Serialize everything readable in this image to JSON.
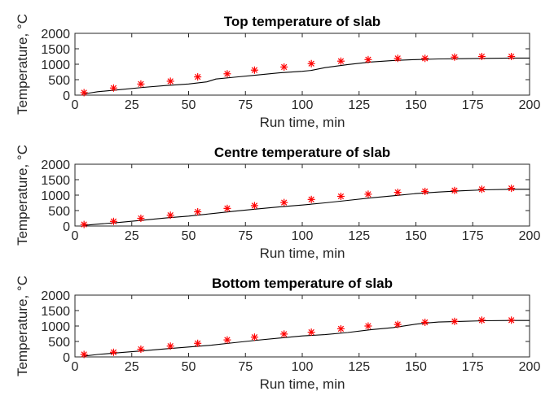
{
  "chart_data": [
    {
      "type": "line",
      "title": "Top temperature of slab",
      "xlabel": "Run time, min",
      "ylabel": "Temperature, °C",
      "xlim": [
        0,
        200
      ],
      "ylim": [
        0,
        2000
      ],
      "xticks": [
        0,
        25,
        50,
        75,
        100,
        125,
        150,
        175,
        200
      ],
      "yticks": [
        0,
        500,
        1000,
        1500,
        2000
      ],
      "grid": false,
      "series": [
        {
          "style": "line",
          "color": "#000000",
          "x": [
            4,
            10,
            20,
            30,
            40,
            50,
            58,
            62,
            70,
            80,
            90,
            100,
            104,
            110,
            120,
            130,
            140,
            150,
            160,
            170,
            180,
            192,
            200
          ],
          "y": [
            40,
            110,
            180,
            250,
            310,
            360,
            430,
            520,
            580,
            650,
            720,
            770,
            800,
            890,
            990,
            1070,
            1120,
            1150,
            1170,
            1180,
            1190,
            1200,
            1200
          ]
        },
        {
          "style": "markers",
          "marker": "asterisk",
          "color": "#ff0000",
          "x": [
            4,
            17,
            29,
            42,
            54,
            67,
            79,
            92,
            104,
            117,
            129,
            142,
            154,
            167,
            179,
            192
          ],
          "y": [
            80,
            230,
            360,
            450,
            590,
            690,
            810,
            910,
            1020,
            1100,
            1150,
            1190,
            1190,
            1230,
            1250,
            1250
          ]
        }
      ]
    },
    {
      "type": "line",
      "title": "Centre temperature of slab",
      "xlabel": "Run time, min",
      "ylabel": "Temperature, °C",
      "xlim": [
        0,
        200
      ],
      "ylim": [
        0,
        2000
      ],
      "xticks": [
        0,
        25,
        50,
        75,
        100,
        125,
        150,
        175,
        200
      ],
      "yticks": [
        0,
        500,
        1000,
        1500,
        2000
      ],
      "grid": false,
      "series": [
        {
          "style": "line",
          "color": "#000000",
          "x": [
            4,
            10,
            20,
            30,
            40,
            50,
            60,
            70,
            80,
            90,
            100,
            110,
            120,
            130,
            140,
            150,
            160,
            170,
            180,
            192,
            200
          ],
          "y": [
            20,
            60,
            120,
            190,
            260,
            320,
            400,
            480,
            550,
            620,
            680,
            750,
            830,
            910,
            980,
            1050,
            1100,
            1140,
            1170,
            1190,
            1190
          ]
        },
        {
          "style": "markers",
          "marker": "asterisk",
          "color": "#ff0000",
          "x": [
            4,
            17,
            29,
            42,
            54,
            67,
            79,
            92,
            104,
            117,
            129,
            142,
            154,
            167,
            179,
            192
          ],
          "y": [
            50,
            150,
            250,
            350,
            460,
            570,
            660,
            760,
            860,
            960,
            1030,
            1090,
            1120,
            1150,
            1190,
            1220
          ]
        }
      ]
    },
    {
      "type": "line",
      "title": "Bottom temperature of slab",
      "xlabel": "Run time, min",
      "ylabel": "Temperature, °C",
      "xlim": [
        0,
        200
      ],
      "ylim": [
        0,
        2000
      ],
      "xticks": [
        0,
        25,
        50,
        75,
        100,
        125,
        150,
        175,
        200
      ],
      "yticks": [
        0,
        500,
        1000,
        1500,
        2000
      ],
      "grid": false,
      "series": [
        {
          "style": "line",
          "color": "#000000",
          "x": [
            4,
            10,
            20,
            30,
            40,
            50,
            60,
            70,
            80,
            90,
            100,
            110,
            120,
            130,
            140,
            150,
            155,
            160,
            170,
            180,
            192,
            200
          ],
          "y": [
            30,
            80,
            140,
            200,
            260,
            320,
            380,
            460,
            540,
            610,
            680,
            720,
            790,
            880,
            950,
            1060,
            1100,
            1130,
            1150,
            1170,
            1180,
            1180
          ]
        },
        {
          "style": "markers",
          "marker": "asterisk",
          "color": "#ff0000",
          "x": [
            4,
            17,
            29,
            42,
            54,
            67,
            79,
            92,
            104,
            117,
            129,
            142,
            154,
            167,
            179,
            192
          ],
          "y": [
            80,
            150,
            250,
            350,
            440,
            550,
            640,
            740,
            800,
            910,
            1000,
            1050,
            1120,
            1150,
            1190,
            1190
          ]
        }
      ]
    }
  ]
}
